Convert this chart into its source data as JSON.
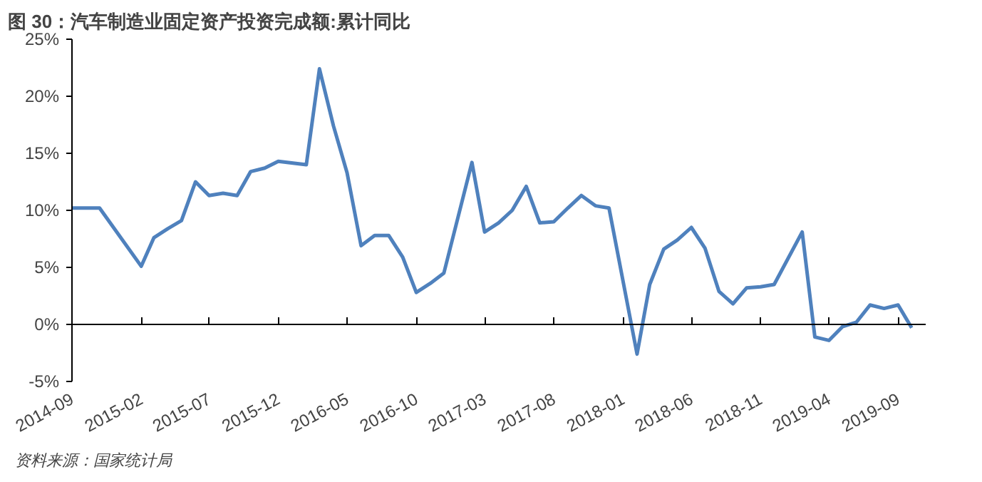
{
  "chart_data": {
    "type": "line",
    "title": "图 30：汽车制造业固定资产投资完成额:累计同比",
    "annotations": [
      "资料来源：国家统计局"
    ],
    "series": [
      {
        "color": "#4f81bd",
        "line_style": "solid",
        "marker": "none",
        "x": [
          "2014-09",
          "2014-11",
          "2015-02",
          "2015-03",
          "2015-04",
          "2015-05",
          "2015-06",
          "2015-07",
          "2015-08",
          "2015-09",
          "2015-10",
          "2015-11",
          "2015-12",
          "2016-02",
          "2016-03",
          "2016-04",
          "2016-05",
          "2016-06",
          "2016-07",
          "2016-08",
          "2016-09",
          "2016-10",
          "2016-11",
          "2016-12",
          "2017-02",
          "2017-03",
          "2017-04",
          "2017-05",
          "2017-06",
          "2017-07",
          "2017-08",
          "2017-09",
          "2017-10",
          "2017-11",
          "2017-12",
          "2018-02",
          "2018-03",
          "2018-04",
          "2018-05",
          "2018-06",
          "2018-07",
          "2018-08",
          "2018-09",
          "2018-10",
          "2018-11",
          "2018-12",
          "2019-02",
          "2019-03",
          "2019-04",
          "2019-05",
          "2019-06",
          "2019-07",
          "2019-08",
          "2019-09",
          "2019-10"
        ],
        "values": [
          10.2,
          10.2,
          5.1,
          7.6,
          8.4,
          9.1,
          12.5,
          11.3,
          11.5,
          11.3,
          13.4,
          13.7,
          14.3,
          14.0,
          22.4,
          17.4,
          13.3,
          6.9,
          7.8,
          7.8,
          5.9,
          2.8,
          3.6,
          4.5,
          14.2,
          8.1,
          8.9,
          10.0,
          12.1,
          8.9,
          9.0,
          10.2,
          11.3,
          10.4,
          10.2,
          -2.6,
          3.5,
          6.6,
          7.4,
          8.5,
          6.7,
          2.9,
          1.8,
          3.2,
          3.3,
          3.5,
          8.1,
          -1.1,
          -1.4,
          -0.2,
          0.2,
          1.7,
          1.4,
          1.7,
          -0.3
        ]
      }
    ],
    "xlim": [
      "2014-09",
      "2019-11"
    ],
    "xticks": [
      "2014-09",
      "2015-02",
      "2015-07",
      "2015-12",
      "2016-05",
      "2016-10",
      "2017-03",
      "2017-08",
      "2018-01",
      "2018-06",
      "2018-11",
      "2019-04",
      "2019-09"
    ],
    "ylim": [
      -5,
      25
    ],
    "yticks": [
      {
        "value": -5,
        "label": "-5%"
      },
      {
        "value": 0,
        "label": "0%"
      },
      {
        "value": 5,
        "label": "5%"
      },
      {
        "value": 10,
        "label": "10%"
      },
      {
        "value": 15,
        "label": "15%"
      },
      {
        "value": 20,
        "label": "20%"
      },
      {
        "value": 25,
        "label": "25%"
      }
    ]
  }
}
